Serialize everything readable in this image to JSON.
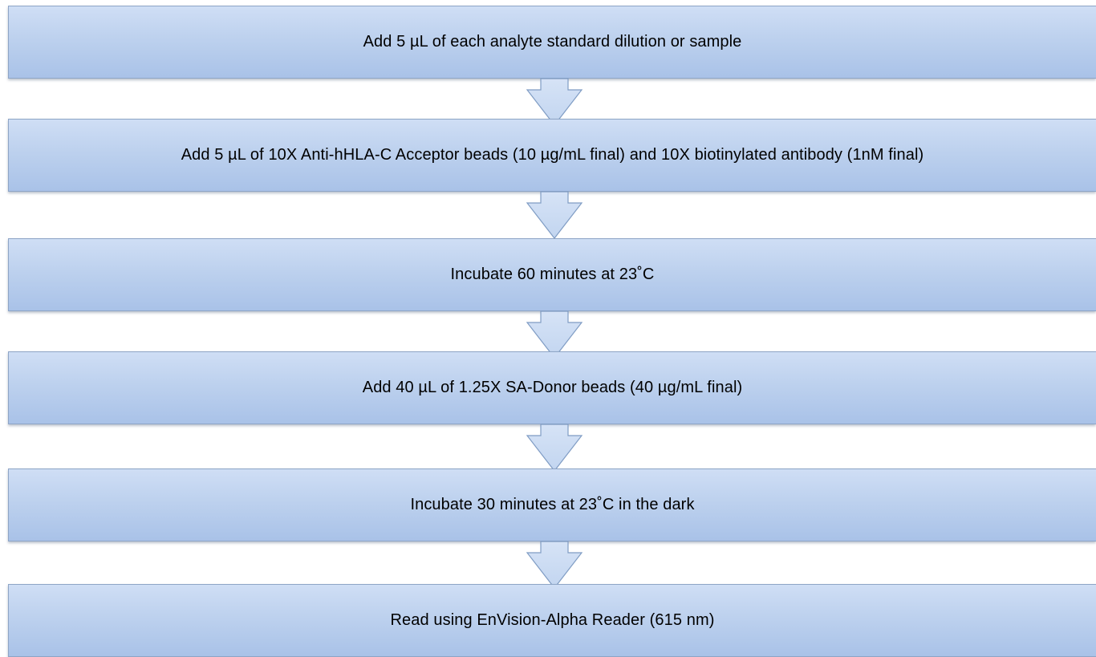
{
  "flowchart": {
    "steps": [
      {
        "label": "Add 5 µL of each analyte standard dilution or sample"
      },
      {
        "label": "Add 5 µL of  10X Anti-hHLA-C Acceptor beads (10 µg/mL final) and 10X biotinylated antibody (1nM final)"
      },
      {
        "label": "Incubate 60 minutes at 23˚C"
      },
      {
        "label": "Add 40 µL of 1.25X SA-Donor beads (40 µg/mL final)"
      },
      {
        "label": "Incubate 30 minutes at 23˚C in the dark"
      },
      {
        "label": "Read using EnVision-Alpha Reader (615 nm)"
      }
    ],
    "arrow_icon": "down-arrow-icon",
    "colors": {
      "box_fill_top": "#cfdef5",
      "box_fill_bottom": "#a9c2e8",
      "box_border": "#8ea5c6",
      "arrow_fill": "#c2d5f0",
      "arrow_stroke": "#7f9cc4"
    }
  }
}
